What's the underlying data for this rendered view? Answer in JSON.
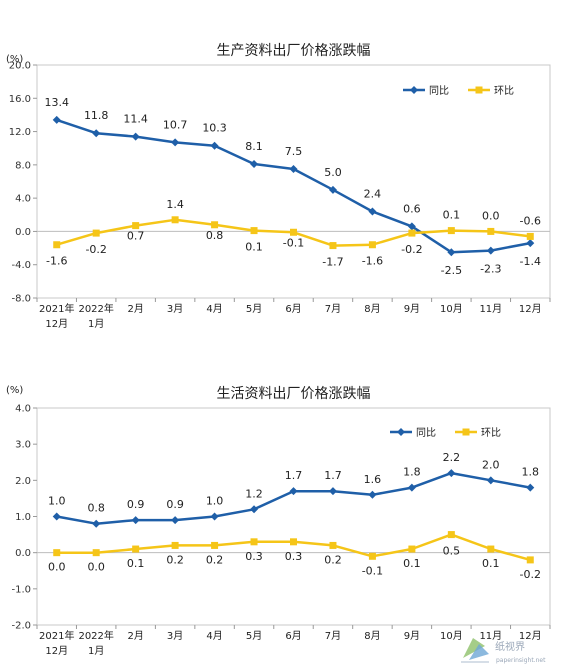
{
  "chart_data": [
    {
      "type": "line",
      "title": "生产资料出厂价格涨跌幅",
      "unit": "(%)",
      "categories": [
        [
          "2021年",
          "12月"
        ],
        [
          "2022年",
          "1月"
        ],
        [
          "2月"
        ],
        [
          "3月"
        ],
        [
          "4月"
        ],
        [
          "5月"
        ],
        [
          "6月"
        ],
        [
          "7月"
        ],
        [
          "8月"
        ],
        [
          "9月"
        ],
        [
          "10月"
        ],
        [
          "11月"
        ],
        [
          "12月"
        ]
      ],
      "ylim": [
        -8.0,
        20.0
      ],
      "yticks": [
        "20.0",
        "16.0",
        "12.0",
        "8.0",
        "4.0",
        "0.0",
        "-4.0",
        "-8.0"
      ],
      "yticks_values": [
        20,
        16,
        12,
        8,
        4,
        0,
        -4,
        -8
      ],
      "legend_position": "top-right",
      "series": [
        {
          "name": "同比",
          "color": "#1f5fa8",
          "marker": "diamond",
          "values": [
            13.4,
            11.8,
            11.4,
            10.7,
            10.3,
            8.1,
            7.5,
            5.0,
            2.4,
            0.6,
            -2.5,
            -2.3,
            -1.4
          ],
          "labels": [
            "13.4",
            "11.8",
            "11.4",
            "10.7",
            "10.3",
            "8.1",
            "7.5",
            "5.0",
            "2.4",
            "0.6",
            "-2.5",
            "-2.3",
            "-1.4"
          ]
        },
        {
          "name": "环比",
          "color": "#f5c518",
          "marker": "square",
          "values": [
            -1.6,
            -0.2,
            0.7,
            1.4,
            0.8,
            0.1,
            -0.1,
            -1.7,
            -1.6,
            -0.2,
            0.1,
            0.0,
            -0.6
          ],
          "labels": [
            "-1.6",
            "-0.2",
            "0.7",
            "1.4",
            "0.8",
            "0.1",
            "-0.1",
            "-1.7",
            "-1.6",
            "-0.2",
            "0.1",
            "0.0",
            "-0.6"
          ]
        }
      ]
    },
    {
      "type": "line",
      "title": "生活资料出厂价格涨跌幅",
      "unit": "(%)",
      "categories": [
        [
          "2021年",
          "12月"
        ],
        [
          "2022年",
          "1月"
        ],
        [
          "2月"
        ],
        [
          "3月"
        ],
        [
          "4月"
        ],
        [
          "5月"
        ],
        [
          "6月"
        ],
        [
          "7月"
        ],
        [
          "8月"
        ],
        [
          "9月"
        ],
        [
          "10月"
        ],
        [
          "11月"
        ],
        [
          "12月"
        ]
      ],
      "ylim": [
        -2.0,
        4.0
      ],
      "yticks": [
        "4.0",
        "3.0",
        "2.0",
        "1.0",
        "0.0",
        "-1.0",
        "-2.0"
      ],
      "yticks_values": [
        4,
        3,
        2,
        1,
        0,
        -1,
        -2
      ],
      "legend_position": "top-right",
      "series": [
        {
          "name": "同比",
          "color": "#1f5fa8",
          "marker": "diamond",
          "values": [
            1.0,
            0.8,
            0.9,
            0.9,
            1.0,
            1.2,
            1.7,
            1.7,
            1.6,
            1.8,
            2.2,
            2.0,
            1.8
          ],
          "labels": [
            "1.0",
            "0.8",
            "0.9",
            "0.9",
            "1.0",
            "1.2",
            "1.7",
            "1.7",
            "1.6",
            "1.8",
            "2.2",
            "2.0",
            "1.8"
          ]
        },
        {
          "name": "环比",
          "color": "#f5c518",
          "marker": "square",
          "values": [
            0.0,
            0.0,
            0.1,
            0.2,
            0.2,
            0.3,
            0.3,
            0.2,
            -0.1,
            0.1,
            0.5,
            0.1,
            -0.2
          ],
          "labels": [
            "0.0",
            "0.0",
            "0.1",
            "0.2",
            "0.2",
            "0.3",
            "0.3",
            "0.2",
            "-0.1",
            "0.1",
            "0.5",
            "0.1",
            "-0.2"
          ]
        }
      ]
    }
  ],
  "watermark": {
    "text": "纸视界",
    "url": "paperinsight.net"
  }
}
